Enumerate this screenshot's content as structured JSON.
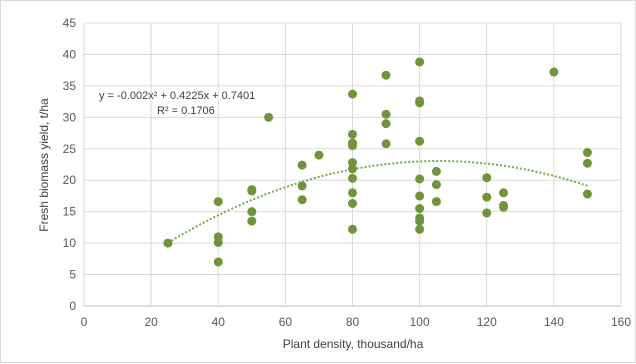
{
  "chart_data": {
    "type": "scatter",
    "xlabel": "Plant density, thousand/ha",
    "ylabel": "Fresh biomass yield, t/ha",
    "xlim": [
      0,
      160
    ],
    "ylim": [
      0,
      45
    ],
    "x_ticks": [
      "0",
      "20",
      "40",
      "60",
      "80",
      "100",
      "120",
      "140",
      "160"
    ],
    "y_ticks": [
      "0",
      "5",
      "10",
      "15",
      "20",
      "25",
      "30",
      "35",
      "40",
      "45"
    ],
    "grid": true,
    "point_color": "#70943c",
    "trend_color": "#70ad47",
    "trendline": {
      "type": "polynomial",
      "equation": "y = -0.002x² + 0.4225x + 0.7401",
      "r_squared": "R² = 0.1706",
      "coefficients": [
        -0.002,
        0.4225,
        0.7401
      ],
      "x_range": [
        25,
        150
      ]
    },
    "series": [
      {
        "points": [
          [
            25,
            10.0
          ],
          [
            40,
            16.6
          ],
          [
            40,
            11.0
          ],
          [
            40,
            10.1
          ],
          [
            40,
            7.0
          ],
          [
            50,
            18.5
          ],
          [
            50,
            18.3
          ],
          [
            50,
            15.0
          ],
          [
            50,
            13.5
          ],
          [
            55,
            30.0
          ],
          [
            65,
            22.4
          ],
          [
            65,
            19.1
          ],
          [
            65,
            16.9
          ],
          [
            70,
            24.0
          ],
          [
            80,
            33.7
          ],
          [
            80,
            27.3
          ],
          [
            80,
            25.9
          ],
          [
            80,
            25.5
          ],
          [
            80,
            22.8
          ],
          [
            80,
            21.8
          ],
          [
            80,
            20.3
          ],
          [
            80,
            18.0
          ],
          [
            80,
            16.3
          ],
          [
            80,
            12.2
          ],
          [
            90,
            36.7
          ],
          [
            90,
            30.5
          ],
          [
            90,
            29.0
          ],
          [
            90,
            25.8
          ],
          [
            100,
            38.8
          ],
          [
            100,
            32.6
          ],
          [
            100,
            32.3
          ],
          [
            100,
            26.2
          ],
          [
            100,
            20.2
          ],
          [
            100,
            17.5
          ],
          [
            100,
            15.5
          ],
          [
            100,
            14.0
          ],
          [
            100,
            13.5
          ],
          [
            100,
            12.2
          ],
          [
            105,
            21.4
          ],
          [
            105,
            19.3
          ],
          [
            105,
            16.6
          ],
          [
            120,
            20.4
          ],
          [
            120,
            17.3
          ],
          [
            120,
            14.8
          ],
          [
            125,
            18.0
          ],
          [
            125,
            16.0
          ],
          [
            125,
            15.7
          ],
          [
            140,
            37.2
          ],
          [
            150,
            24.4
          ],
          [
            150,
            22.7
          ],
          [
            150,
            17.8
          ]
        ]
      }
    ]
  }
}
